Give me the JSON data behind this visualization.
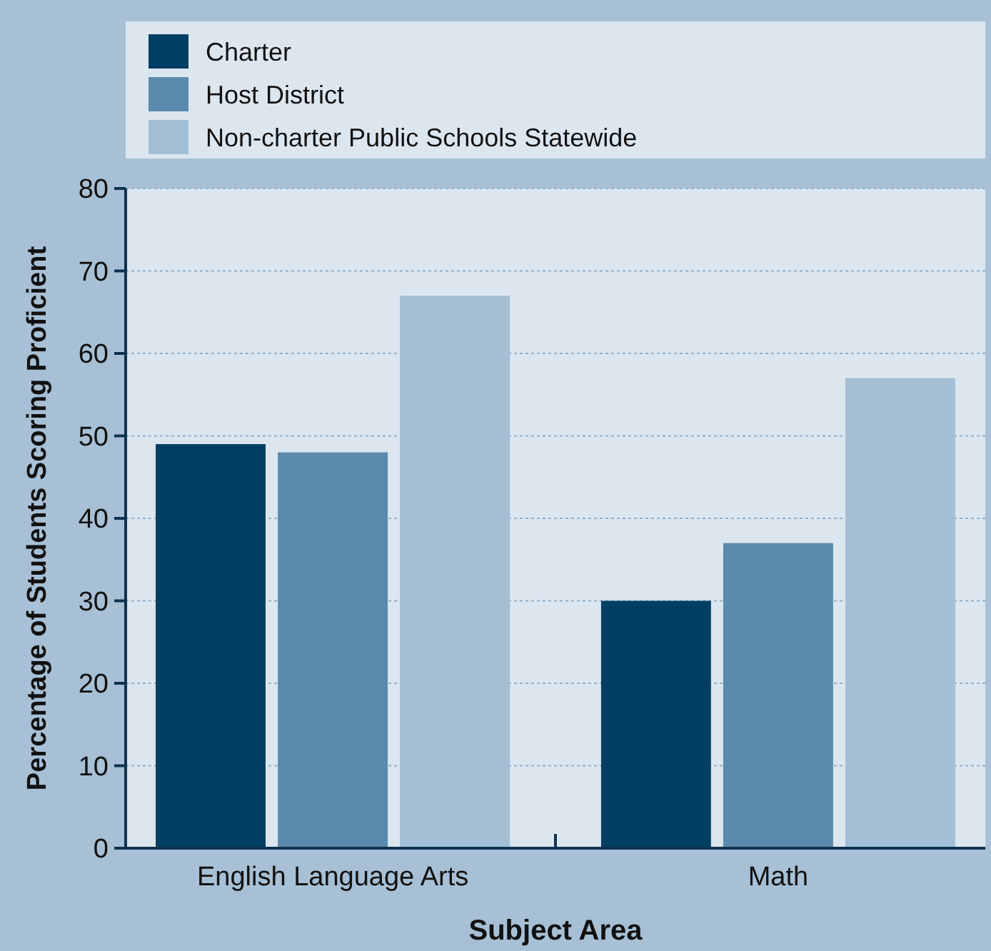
{
  "chart_data": {
    "type": "bar",
    "xlabel": "Subject Area",
    "ylabel": "Percentage of Students Scoring Proficient",
    "categories": [
      "English Language Arts",
      "Math"
    ],
    "series": [
      {
        "name": "Charter",
        "color": "#003f63",
        "values": [
          49,
          30
        ]
      },
      {
        "name": "Host District",
        "color": "#5a8aad",
        "values": [
          48,
          37
        ]
      },
      {
        "name": "Non-charter Public Schools Statewide",
        "color": "#a3bfd6",
        "values": [
          67,
          57
        ]
      }
    ],
    "ylim": [
      0,
      80
    ],
    "yticks": [
      0,
      10,
      20,
      30,
      40,
      50,
      60,
      70,
      80
    ],
    "grid": "y",
    "legend": "top"
  }
}
